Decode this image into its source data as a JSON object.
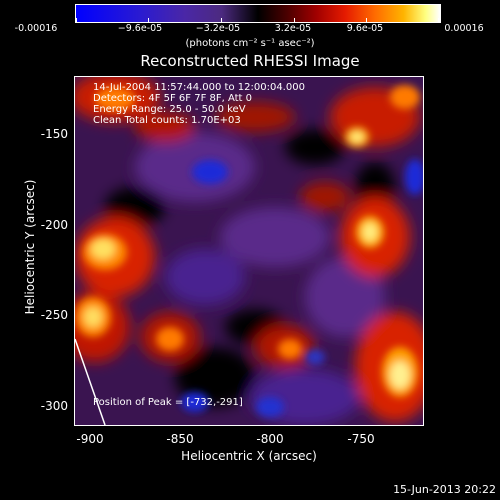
{
  "colorbar": {
    "ticks": [
      "-0.00016",
      "−9.6e-05",
      "−3.2e-05",
      "3.2e-05",
      "9.6e-05",
      "0.00016"
    ],
    "units": "(photons cm⁻² s⁻¹ asec⁻²)"
  },
  "title": "Reconstructed RHESSI Image",
  "info": {
    "time": "14-Jul-2004 11:57:44.000 to 12:00:04.000",
    "detectors": "Detectors: 4F 5F 6F 7F 8F, Att 0",
    "energy": "Energy Range: 25.0 - 50.0 keV",
    "clean": "Clean     Total counts: 1.70E+03",
    "peak": "Position of Peak = [-732,-291]"
  },
  "axes": {
    "xlabel": "Heliocentric X (arcsec)",
    "ylabel": "Heliocentric Y (arcsec)",
    "xticks": [
      "-900",
      "-850",
      "-800",
      "-750"
    ],
    "yticks": [
      "-150",
      "-200",
      "-250",
      "-300"
    ]
  },
  "footer": "15-Jun-2013 20:22"
}
